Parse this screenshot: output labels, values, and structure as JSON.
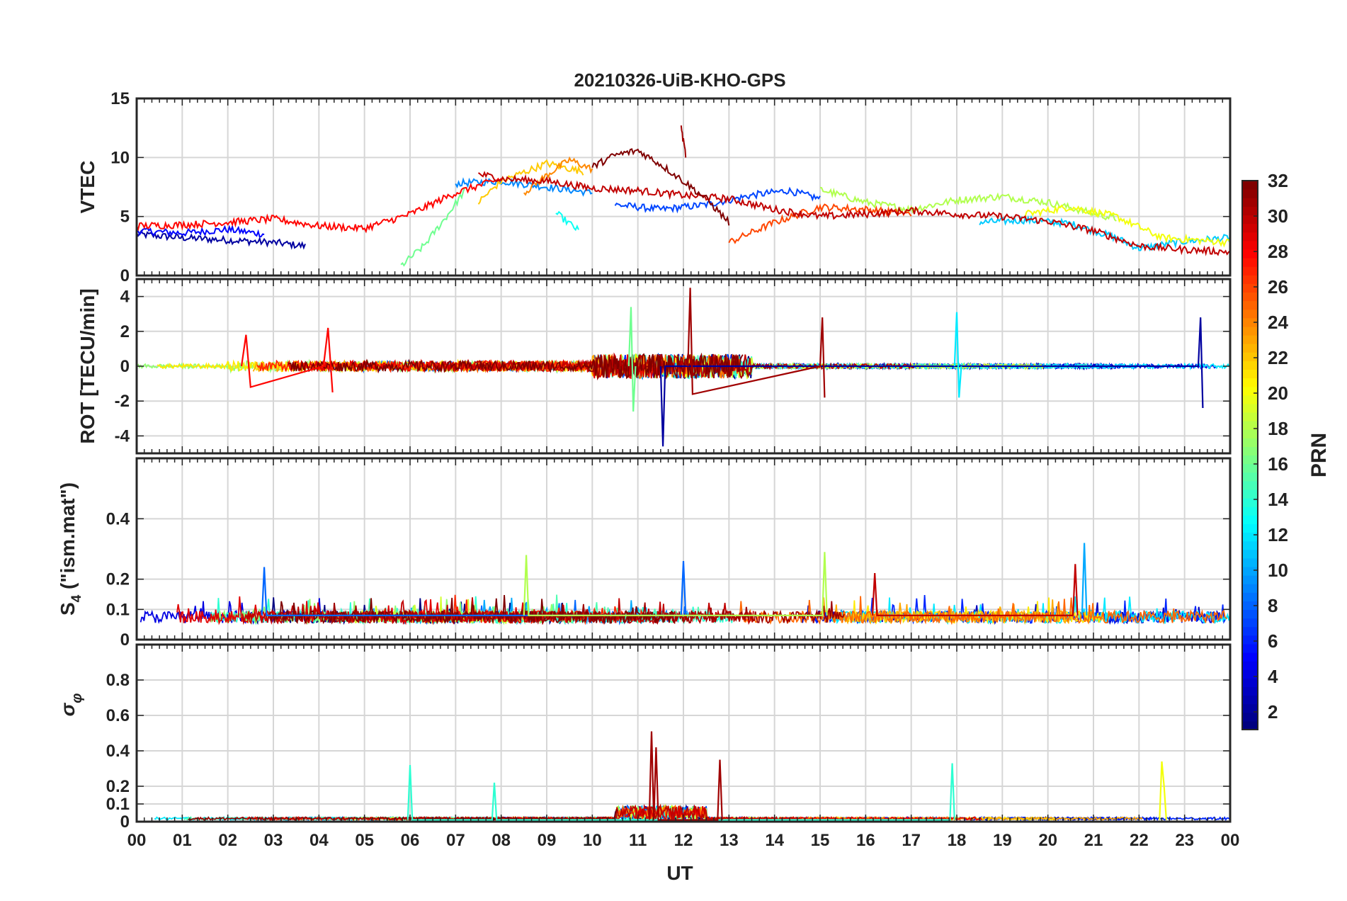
{
  "chart_data": [
    {
      "type": "line",
      "id": "vtec",
      "title": "20210326-UiB-KHO-GPS",
      "ylabel": "VTEC",
      "ylim": [
        0,
        15
      ],
      "yticks": [
        0,
        5,
        10,
        15
      ],
      "ytick_labels": [
        "0",
        "5",
        "10",
        "15"
      ],
      "grid": true,
      "series": [
        {
          "name": "PRN 2",
          "prn": 2,
          "x": [
            0,
            1,
            2,
            3,
            3.7
          ],
          "values": [
            3.5,
            3.2,
            3.0,
            2.8,
            2.5
          ]
        },
        {
          "name": "PRN 5",
          "prn": 5,
          "x": [
            0,
            1,
            2,
            2.8
          ],
          "values": [
            3.8,
            3.6,
            3.9,
            3.5
          ]
        },
        {
          "name": "PRN 7",
          "prn": 7,
          "x": [
            10.5,
            11.5,
            12.5,
            13.5,
            14.3,
            15
          ],
          "values": [
            6.0,
            5.6,
            6.0,
            6.8,
            7.2,
            6.5
          ]
        },
        {
          "name": "PRN 9",
          "prn": 9,
          "x": [
            7,
            8,
            9,
            10
          ],
          "values": [
            7.8,
            8.0,
            7.5,
            7.0
          ]
        },
        {
          "name": "PRN 11",
          "prn": 11,
          "x": [
            18.5,
            19.5,
            20.5,
            21.5,
            22,
            23,
            24
          ],
          "values": [
            4.5,
            4.7,
            4.4,
            3.2,
            2.3,
            2.9,
            3.2
          ]
        },
        {
          "name": "PRN 13",
          "prn": 13,
          "x": [
            9.2,
            9.7
          ],
          "values": [
            5.3,
            3.8
          ]
        },
        {
          "name": "PRN 16",
          "prn": 16,
          "x": [
            5.8,
            6.3,
            6.8,
            7.2
          ],
          "values": [
            0.8,
            2.5,
            5.0,
            7.2
          ]
        },
        {
          "name": "PRN 18",
          "prn": 18,
          "x": [
            15,
            16,
            17,
            18,
            19,
            20,
            21.5
          ],
          "values": [
            7.3,
            6.2,
            5.6,
            6.4,
            6.7,
            6.2,
            4.8
          ]
        },
        {
          "name": "PRN 20",
          "prn": 20,
          "x": [
            19.5,
            20.5,
            21.5,
            22.5,
            24
          ],
          "values": [
            5.2,
            5.8,
            5.0,
            3.2,
            2.8
          ]
        },
        {
          "name": "PRN 22",
          "prn": 22,
          "x": [
            7.5,
            8,
            9,
            9.8
          ],
          "values": [
            6.2,
            8.0,
            9.5,
            8.8
          ]
        },
        {
          "name": "PRN 24",
          "prn": 24,
          "x": [
            8.5,
            9,
            9.5,
            10
          ],
          "values": [
            7.0,
            8.5,
            9.8,
            9.0
          ]
        },
        {
          "name": "PRN 26",
          "prn": 26,
          "x": [
            13,
            14,
            15,
            16,
            17
          ],
          "values": [
            2.8,
            4.5,
            5.8,
            5.6,
            5.2
          ]
        },
        {
          "name": "PRN 28",
          "prn": 28,
          "x": [
            0,
            1,
            2,
            3,
            4,
            5,
            6,
            7,
            8
          ],
          "values": [
            4.2,
            4.3,
            4.5,
            4.8,
            4.2,
            4.0,
            5.2,
            7.0,
            8.2
          ]
        },
        {
          "name": "PRN 30",
          "prn": 30,
          "x": [
            7.5,
            8,
            9,
            10,
            11,
            12,
            13,
            14,
            15,
            16,
            17,
            18,
            19,
            20,
            21,
            22,
            23,
            24
          ],
          "values": [
            8.6,
            8.2,
            8.0,
            7.4,
            7.2,
            6.8,
            6.5,
            5.6,
            5.0,
            5.2,
            5.5,
            5.2,
            5.0,
            4.6,
            3.8,
            2.5,
            2.2,
            2.0
          ]
        },
        {
          "name": "PRN 32",
          "prn": 32,
          "x": [
            10,
            10.5,
            11,
            11.5,
            12,
            12.5,
            13
          ],
          "values": [
            9.2,
            10.2,
            10.6,
            9.4,
            8.0,
            6.5,
            4.5
          ]
        },
        {
          "name": "PRN 31",
          "prn": 31,
          "x": [
            11.95,
            12.05
          ],
          "values": [
            12.5,
            10.2
          ]
        }
      ]
    },
    {
      "type": "line",
      "id": "rot",
      "ylabel": "ROT [TECU/min]",
      "ylim": [
        -5,
        5
      ],
      "yticks": [
        -4,
        -2,
        0,
        2,
        4
      ],
      "ytick_labels": [
        "-4",
        "-2",
        "0",
        "2",
        "4"
      ],
      "grid": true,
      "series": [
        {
          "name": "PRN 2 spikes",
          "prn": 2,
          "x": [
            11.5,
            11.55,
            11.6,
            23.3,
            23.35,
            23.4
          ],
          "values": [
            0,
            -4.6,
            0,
            0,
            2.8,
            -2.4
          ]
        },
        {
          "name": "PRN 12 spikes",
          "prn": 12,
          "x": [
            17.95,
            18.0,
            18.05,
            18.1
          ],
          "values": [
            0,
            3.1,
            -1.8,
            0
          ]
        },
        {
          "name": "PRN 16 spikes",
          "prn": 16,
          "x": [
            10.8,
            10.85,
            10.9,
            10.95
          ],
          "values": [
            0,
            3.4,
            -2.6,
            0
          ]
        },
        {
          "name": "PRN 28 spikes",
          "prn": 28,
          "x": [
            2.3,
            2.4,
            2.5,
            4.1,
            4.2,
            4.3
          ],
          "values": [
            0,
            1.8,
            -1.2,
            0,
            2.2,
            -1.5
          ]
        },
        {
          "name": "PRN 31 spikes",
          "prn": 31,
          "x": [
            12.1,
            12.15,
            12.2,
            15.0,
            15.05,
            15.1
          ],
          "values": [
            0,
            4.5,
            -1.6,
            0,
            2.8,
            -1.8
          ]
        }
      ]
    },
    {
      "type": "line",
      "id": "s4",
      "ylabel": "S4 (\"ism.mat\")",
      "ylim": [
        0,
        0.6
      ],
      "yticks": [
        0,
        0.1,
        0.2,
        0.4
      ],
      "ytick_labels": [
        "0",
        "0.1",
        "0.2",
        "0.4"
      ],
      "grid": true,
      "series": [
        {
          "name": "PRN 8 spikes",
          "prn": 8,
          "x": [
            2.75,
            2.8,
            2.85,
            11.95,
            12.0,
            12.05
          ],
          "values": [
            0.08,
            0.24,
            0.08,
            0.08,
            0.26,
            0.08
          ]
        },
        {
          "name": "PRN 10 spikes",
          "prn": 10,
          "x": [
            20.75,
            20.8,
            20.85
          ],
          "values": [
            0.08,
            0.32,
            0.08
          ]
        },
        {
          "name": "PRN 18 spikes",
          "prn": 18,
          "x": [
            8.5,
            8.55,
            8.6,
            15.05,
            15.1,
            15.15
          ],
          "values": [
            0.08,
            0.28,
            0.08,
            0.08,
            0.29,
            0.08
          ]
        },
        {
          "name": "PRN 30 spikes",
          "prn": 30,
          "x": [
            16.15,
            16.2,
            16.25,
            20.55,
            20.6,
            20.65
          ],
          "values": [
            0.08,
            0.22,
            0.08,
            0.08,
            0.25,
            0.08
          ]
        }
      ]
    },
    {
      "type": "line",
      "id": "sigma-phi",
      "ylabel": "σφ",
      "ylim": [
        0,
        1
      ],
      "yticks": [
        0,
        0.1,
        0.2,
        0.4,
        0.6,
        0.8
      ],
      "ytick_labels": [
        "0",
        "0.1",
        "0.2",
        "0.4",
        "0.6",
        "0.8"
      ],
      "grid": true,
      "series": [
        {
          "name": "PRN 14 spikes",
          "prn": 14,
          "x": [
            5.95,
            6.0,
            6.05,
            7.8,
            7.85,
            7.9,
            17.85,
            17.9,
            17.95
          ],
          "values": [
            0.01,
            0.32,
            0.01,
            0.01,
            0.22,
            0.01,
            0.01,
            0.33,
            0.01
          ]
        },
        {
          "name": "PRN 20 spikes",
          "prn": 20,
          "x": [
            22.45,
            22.5,
            22.55,
            22.6
          ],
          "values": [
            0.01,
            0.34,
            0.2,
            0.01
          ]
        },
        {
          "name": "PRN 31 spikes",
          "prn": 31,
          "x": [
            11.25,
            11.3,
            11.35,
            11.4,
            11.45,
            12.75,
            12.8,
            12.85
          ],
          "values": [
            0.01,
            0.51,
            0.01,
            0.42,
            0.01,
            0.01,
            0.35,
            0.01
          ]
        }
      ]
    }
  ],
  "xaxis": {
    "xlabel": "UT",
    "xlim": [
      0,
      24
    ],
    "ticks": [
      0,
      1,
      2,
      3,
      4,
      5,
      6,
      7,
      8,
      9,
      10,
      11,
      12,
      13,
      14,
      15,
      16,
      17,
      18,
      19,
      20,
      21,
      22,
      23,
      24
    ],
    "tick_labels": [
      "00",
      "01",
      "02",
      "03",
      "04",
      "05",
      "06",
      "07",
      "08",
      "09",
      "10",
      "11",
      "12",
      "13",
      "14",
      "15",
      "16",
      "17",
      "18",
      "19",
      "20",
      "21",
      "22",
      "23",
      "00"
    ]
  },
  "colorbar": {
    "label": "PRN",
    "range": [
      1,
      32
    ],
    "ticks": [
      2,
      4,
      6,
      8,
      10,
      12,
      14,
      16,
      18,
      20,
      22,
      24,
      26,
      28,
      30,
      32
    ],
    "colormap": "jet",
    "colors": [
      "#00008f",
      "#0000ff",
      "#0080ff",
      "#00ffff",
      "#80ff80",
      "#ffff00",
      "#ff8000",
      "#ff0000",
      "#800000"
    ]
  },
  "labels": {
    "s4_main": "S",
    "s4_sub": "4",
    "s4_rest": " (\"ism.mat\")",
    "sigma_main": "σ",
    "sigma_sub": "φ"
  }
}
